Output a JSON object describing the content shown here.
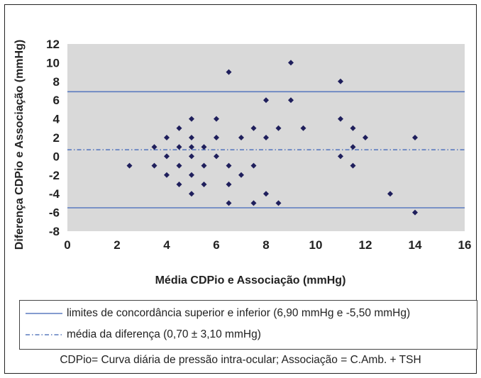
{
  "chart_data": {
    "type": "scatter",
    "xlabel": "Média CDPio e Associação (mmHg)",
    "ylabel": "Diferença CDPio e Associação (mmHg)",
    "xlim": [
      0,
      16
    ],
    "ylim": [
      -8,
      12
    ],
    "x_ticks": [
      0,
      2,
      4,
      6,
      8,
      10,
      12,
      14,
      16
    ],
    "y_ticks": [
      12,
      10,
      8,
      6,
      4,
      2,
      0,
      -2,
      -4,
      -6,
      -8
    ],
    "grid": false,
    "background_color": "#d9d9d9",
    "marker_color": "#1f1f5c",
    "line_color": "#5b7bbf",
    "points": [
      {
        "x": 2.5,
        "y": -1
      },
      {
        "x": 3.5,
        "y": 1
      },
      {
        "x": 3.5,
        "y": -1
      },
      {
        "x": 4,
        "y": 2
      },
      {
        "x": 4,
        "y": 0
      },
      {
        "x": 4,
        "y": -2
      },
      {
        "x": 4.5,
        "y": 3
      },
      {
        "x": 4.5,
        "y": 1
      },
      {
        "x": 4.5,
        "y": -1
      },
      {
        "x": 4.5,
        "y": -3
      },
      {
        "x": 5,
        "y": 4
      },
      {
        "x": 5,
        "y": 2
      },
      {
        "x": 5,
        "y": 1
      },
      {
        "x": 5,
        "y": 0
      },
      {
        "x": 5,
        "y": -2
      },
      {
        "x": 5,
        "y": -4
      },
      {
        "x": 5.5,
        "y": 1
      },
      {
        "x": 5.5,
        "y": -1
      },
      {
        "x": 5.5,
        "y": -3
      },
      {
        "x": 6,
        "y": 4
      },
      {
        "x": 6,
        "y": 2
      },
      {
        "x": 6,
        "y": 0
      },
      {
        "x": 6.5,
        "y": 9
      },
      {
        "x": 6.5,
        "y": -1
      },
      {
        "x": 6.5,
        "y": -3
      },
      {
        "x": 6.5,
        "y": -5
      },
      {
        "x": 7,
        "y": 2
      },
      {
        "x": 7,
        "y": -2
      },
      {
        "x": 7.5,
        "y": 3
      },
      {
        "x": 7.5,
        "y": -1
      },
      {
        "x": 7.5,
        "y": -5
      },
      {
        "x": 8,
        "y": 6
      },
      {
        "x": 8,
        "y": 2
      },
      {
        "x": 8,
        "y": -4
      },
      {
        "x": 8.5,
        "y": 3
      },
      {
        "x": 8.5,
        "y": -5
      },
      {
        "x": 9,
        "y": 10
      },
      {
        "x": 9,
        "y": 6
      },
      {
        "x": 9.5,
        "y": 3
      },
      {
        "x": 11,
        "y": 8
      },
      {
        "x": 11,
        "y": 4
      },
      {
        "x": 11,
        "y": 0
      },
      {
        "x": 11.5,
        "y": 3
      },
      {
        "x": 11.5,
        "y": 1
      },
      {
        "x": 11.5,
        "y": -1
      },
      {
        "x": 12,
        "y": 2
      },
      {
        "x": 13,
        "y": -4
      },
      {
        "x": 14,
        "y": 2
      },
      {
        "x": 14,
        "y": -6
      }
    ],
    "reference_lines": [
      {
        "y": 6.9,
        "style": "solid"
      },
      {
        "y": 0.7,
        "style": "dash-dot"
      },
      {
        "y": -5.5,
        "style": "solid"
      }
    ]
  },
  "legend": {
    "items": [
      {
        "label": "limites de concordância superior e inferior (6,90 mmHg e -5,50 mmHg)",
        "style": "solid"
      },
      {
        "label": "média da diferença (0,70 ±  3,10 mmHg)",
        "style": "dash-dot"
      }
    ]
  },
  "footnote": "CDPio= Curva diária de pressão intra-ocular; Associação = C.Amb. + TSH"
}
